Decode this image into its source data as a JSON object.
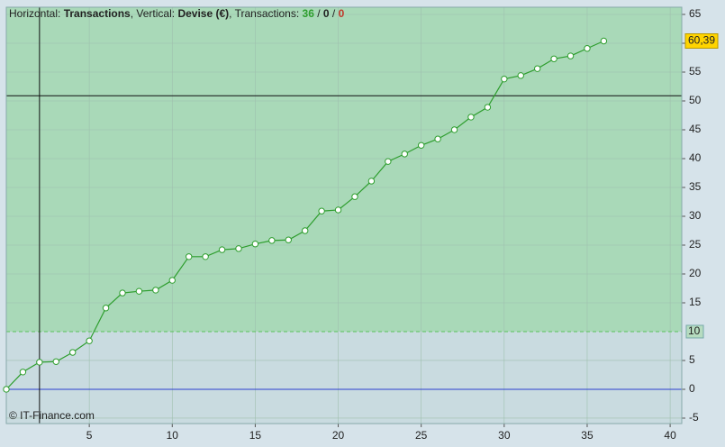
{
  "chart_data": {
    "type": "line",
    "header": {
      "horizontal_label": "Horizontal:",
      "xlabel": "Transactions",
      "vertical_label": "Vertical:",
      "ylabel": "Devise (€)",
      "count_label": "Transactions:",
      "counts": [
        36,
        0,
        0
      ],
      "count_colors": [
        "#2e9e2e",
        "#222222",
        "#c0392b"
      ]
    },
    "watermark": "© IT-Finance.com",
    "x": [
      0,
      1,
      2,
      3,
      4,
      5,
      6,
      7,
      8,
      9,
      10,
      11,
      12,
      13,
      14,
      15,
      16,
      17,
      18,
      19,
      20,
      21,
      22,
      23,
      24,
      25,
      26,
      27,
      28,
      29,
      30,
      31,
      32,
      33,
      34,
      35,
      36
    ],
    "series": [
      {
        "name": "Devise (€)",
        "color": "#2e9e2e",
        "values": [
          0,
          3.0,
          4.7,
          4.8,
          6.4,
          8.4,
          14.1,
          16.7,
          17.0,
          17.2,
          18.9,
          23.0,
          23.0,
          24.2,
          24.4,
          25.2,
          25.8,
          25.9,
          27.5,
          30.9,
          31.1,
          33.4,
          36.1,
          39.5,
          40.8,
          42.3,
          43.4,
          45.0,
          47.2,
          48.9,
          53.8,
          54.4,
          55.6,
          57.3,
          57.8,
          59.1,
          60.39
        ],
        "value_labels": [
          null,
          null,
          null,
          null,
          null,
          null,
          null,
          null,
          null,
          null,
          null,
          null,
          null,
          null,
          null,
          null,
          null,
          null,
          null,
          null,
          null,
          null,
          null,
          null,
          null,
          null,
          null,
          null,
          null,
          null,
          null,
          null,
          null,
          null,
          null,
          null,
          "60,39"
        ]
      }
    ],
    "xlim": [
      0,
      40.7
    ],
    "ylim": [
      -5.94,
      66.25
    ],
    "xticks": [
      5,
      10,
      15,
      20,
      25,
      30,
      35,
      40
    ],
    "yticks": [
      -5,
      0,
      5,
      15,
      20,
      25,
      30,
      35,
      40,
      45,
      50,
      55,
      60,
      65
    ],
    "threshold": 10,
    "zero_line_color": "#2b3fd0",
    "crosshair": {
      "x": 2,
      "y": 50.9
    },
    "grid": true,
    "colors": {
      "above": "#a9d9b8",
      "below": "#c9dbe0",
      "background": "#d6e3ea",
      "grid": "#9fbfae"
    }
  }
}
